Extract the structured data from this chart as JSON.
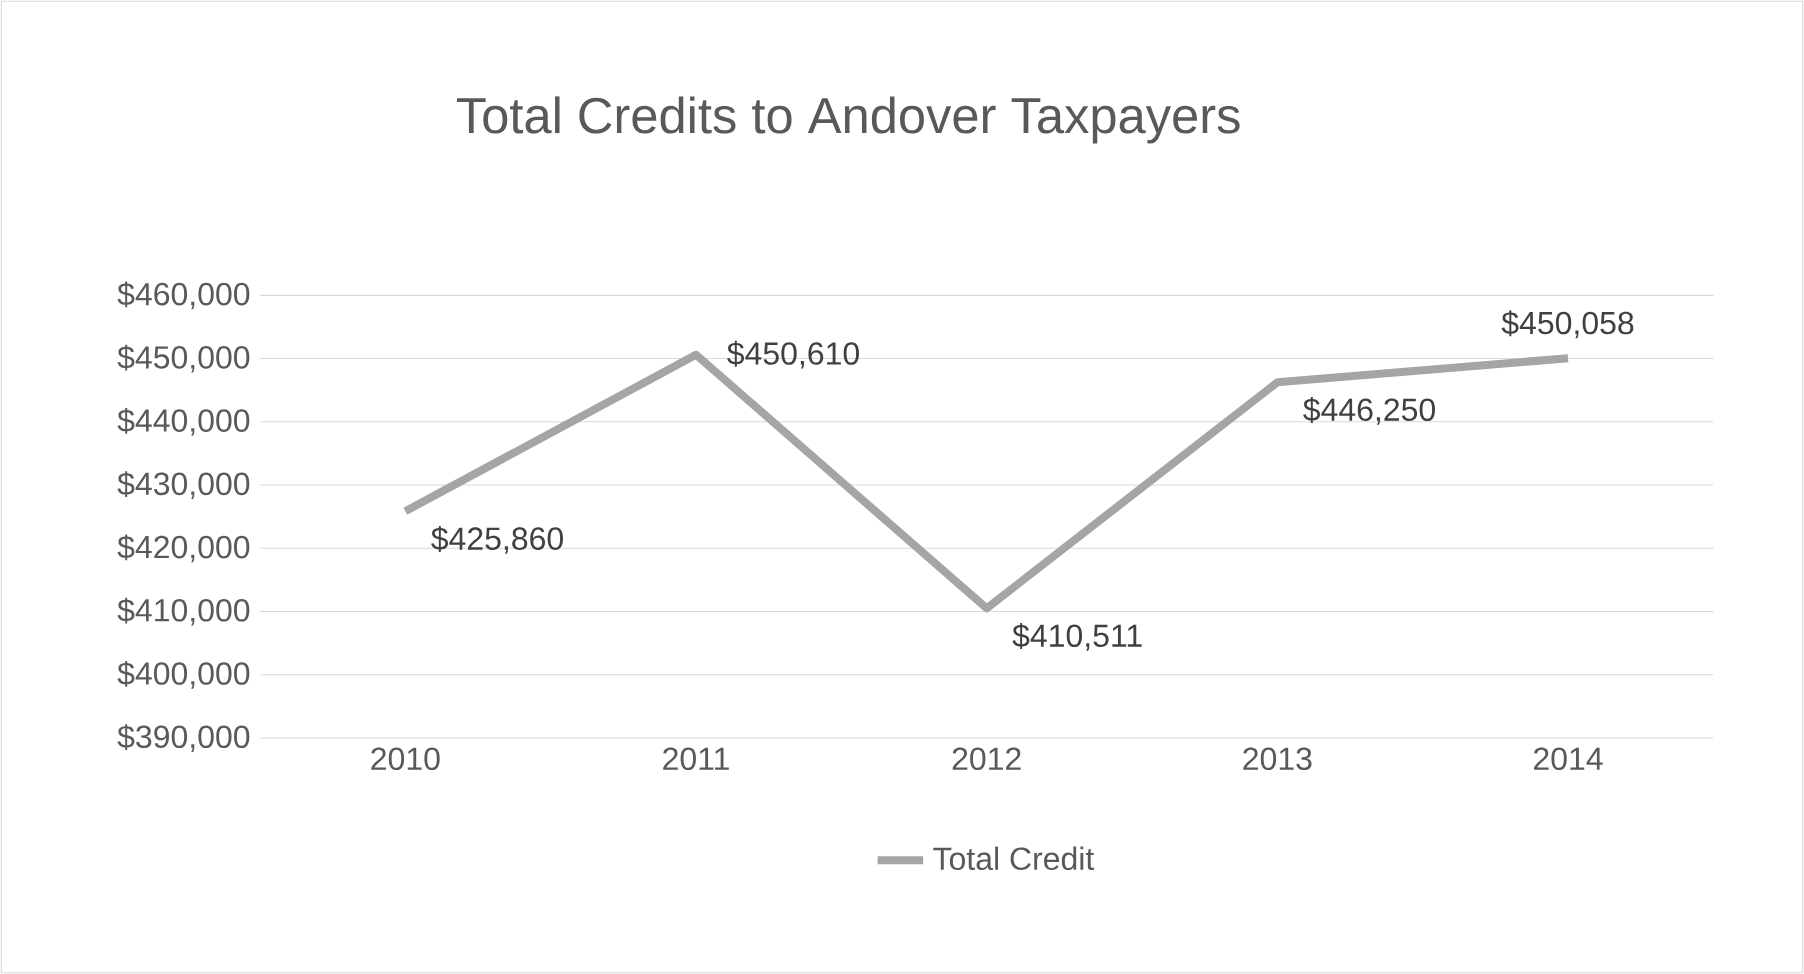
{
  "chart_data": {
    "type": "line",
    "title": "Total Credits to Andover Taxpayers",
    "categories": [
      "2010",
      "2011",
      "2012",
      "2013",
      "2014"
    ],
    "series": [
      {
        "name": "Total Credit",
        "color": "#a5a5a5",
        "values": [
          425860,
          450610,
          410511,
          446250,
          450058
        ],
        "value_labels": [
          "$425,860",
          "$450,610",
          "$410,511",
          "$446,250",
          "$450,058"
        ]
      }
    ],
    "ylim": [
      390000,
      460000
    ],
    "yticks": [
      {
        "value": 390000,
        "label": "$390,000"
      },
      {
        "value": 400000,
        "label": "$400,000"
      },
      {
        "value": 410000,
        "label": "$410,000"
      },
      {
        "value": 420000,
        "label": "$420,000"
      },
      {
        "value": 430000,
        "label": "$430,000"
      },
      {
        "value": 440000,
        "label": "$440,000"
      },
      {
        "value": 450000,
        "label": "$450,000"
      },
      {
        "value": 460000,
        "label": "$460,000"
      }
    ],
    "grid": "y",
    "legend": "bottom",
    "marker": "none",
    "line_style": "solid"
  }
}
